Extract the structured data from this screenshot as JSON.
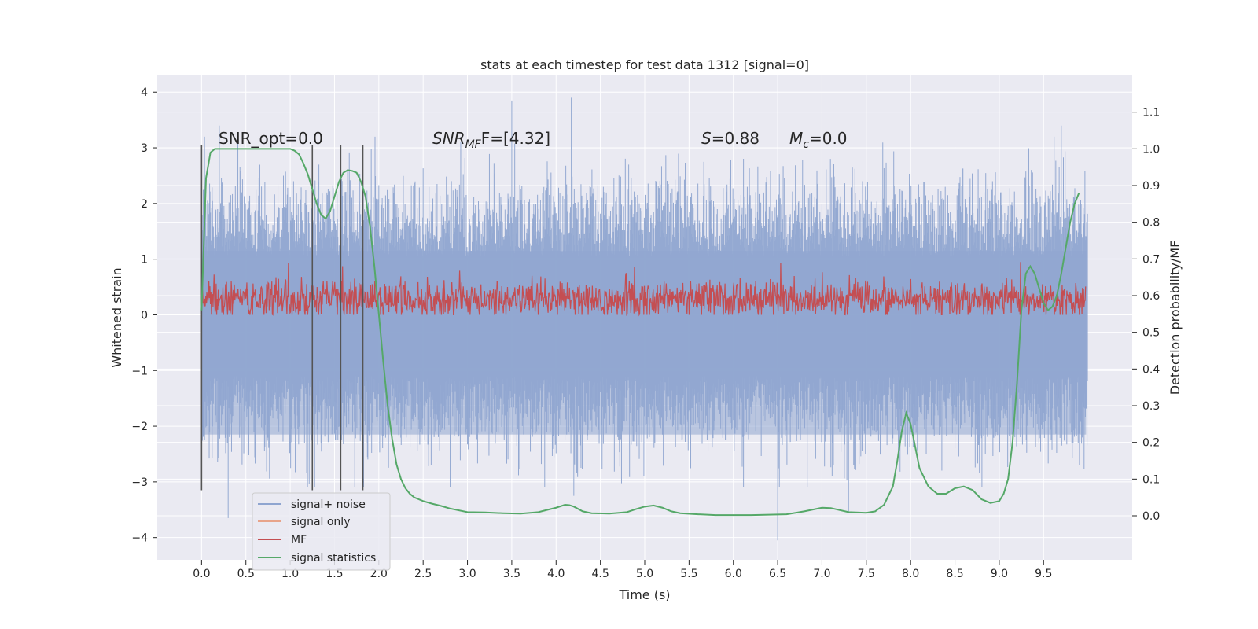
{
  "chart_data": {
    "type": "line",
    "title": "stats at each timestep for test data 1312 [signal=0]",
    "xlabel": "Time (s)",
    "ylabel": "Whitened strain",
    "y2label": "Detection probability/MF",
    "xlim": [
      -0.5,
      10.5
    ],
    "ylim": [
      -4.4,
      4.3
    ],
    "y2lim": [
      -0.12,
      1.2
    ],
    "x_ticks": [
      "0.0",
      "0.5",
      "1.0",
      "1.5",
      "2.0",
      "2.5",
      "3.0",
      "3.5",
      "4.0",
      "4.5",
      "5.0",
      "5.5",
      "6.0",
      "6.5",
      "7.0",
      "7.5",
      "8.0",
      "8.5",
      "9.0",
      "9.5"
    ],
    "y_ticks": [
      "−4",
      "−3",
      "−2",
      "−1",
      "0",
      "1",
      "2",
      "3",
      "4"
    ],
    "y2_ticks": [
      "0.0",
      "0.1",
      "0.2",
      "0.3",
      "0.4",
      "0.5",
      "0.6",
      "0.7",
      "0.8",
      "0.9",
      "1.0",
      "1.1"
    ],
    "grid": true,
    "legend_position": "bottom-left",
    "annotations": {
      "snr_opt": "SNR_opt=0.0",
      "snr_mf_base": "SNR",
      "snr_mf_sub": "MF",
      "snr_mf_rest": "F=[4.32]",
      "s_label": "S",
      "s_value": "=0.88",
      "mc_base": "M",
      "mc_sub": "c",
      "mc_value": "=0.0"
    },
    "vertical_markers_s": [
      0.0,
      1.25,
      1.57,
      1.82
    ],
    "series": [
      {
        "name": "signal+ noise",
        "color": "#8fa5d0",
        "axis": "left",
        "description": "whitened strain noise, amplitude envelope about ±2.5 with peaks near 3.9 and -4.0",
        "peaks": [
          [
            0.2,
            3.4
          ],
          [
            3.5,
            3.85
          ],
          [
            4.17,
            3.9
          ],
          [
            9.7,
            3.4
          ],
          [
            6.5,
            -4.05
          ],
          [
            0.3,
            -3.65
          ],
          [
            4.2,
            -3.25
          ],
          [
            7.3,
            -3.55
          ]
        ]
      },
      {
        "name": "signal only",
        "color": "#e8a48a",
        "axis": "left",
        "values": [
          0,
          0
        ]
      },
      {
        "name": "MF",
        "color": "#c44e52",
        "axis": "left",
        "description": "matched filter output fluctuating between about 0 and 0.6, peaks near 0.95",
        "range": [
          0.0,
          0.95
        ]
      },
      {
        "name": "signal statistics",
        "color": "#55a868",
        "axis": "right",
        "x": [
          0.0,
          0.05,
          0.1,
          0.15,
          0.2,
          0.3,
          0.4,
          0.5,
          0.6,
          0.7,
          0.8,
          0.9,
          1.0,
          1.05,
          1.1,
          1.15,
          1.2,
          1.25,
          1.3,
          1.35,
          1.4,
          1.45,
          1.5,
          1.55,
          1.6,
          1.65,
          1.7,
          1.75,
          1.8,
          1.85,
          1.9,
          1.95,
          2.0,
          2.05,
          2.1,
          2.15,
          2.2,
          2.25,
          2.3,
          2.35,
          2.4,
          2.45,
          2.5,
          2.6,
          2.7,
          2.8,
          3.0,
          3.2,
          3.4,
          3.6,
          3.8,
          3.9,
          4.0,
          4.1,
          4.15,
          4.2,
          4.3,
          4.4,
          4.6,
          4.8,
          4.9,
          5.0,
          5.1,
          5.2,
          5.3,
          5.4,
          5.6,
          5.8,
          6.0,
          6.2,
          6.4,
          6.6,
          6.8,
          7.0,
          7.1,
          7.3,
          7.5,
          7.6,
          7.7,
          7.8,
          7.85,
          7.9,
          7.95,
          8.0,
          8.05,
          8.1,
          8.2,
          8.3,
          8.4,
          8.5,
          8.6,
          8.7,
          8.8,
          8.9,
          9.0,
          9.05,
          9.1,
          9.15,
          9.2,
          9.25,
          9.3,
          9.35,
          9.4,
          9.45,
          9.5,
          9.55,
          9.6,
          9.65,
          9.7,
          9.75,
          9.8,
          9.85,
          9.9
        ],
        "values": [
          0.56,
          0.92,
          0.99,
          1.0,
          1.0,
          1.0,
          1.0,
          1.0,
          1.0,
          1.0,
          1.0,
          1.0,
          1.0,
          0.995,
          0.985,
          0.96,
          0.93,
          0.89,
          0.85,
          0.82,
          0.81,
          0.83,
          0.87,
          0.91,
          0.935,
          0.942,
          0.94,
          0.935,
          0.91,
          0.87,
          0.79,
          0.68,
          0.55,
          0.42,
          0.3,
          0.21,
          0.14,
          0.1,
          0.075,
          0.06,
          0.05,
          0.045,
          0.04,
          0.033,
          0.027,
          0.02,
          0.01,
          0.009,
          0.007,
          0.006,
          0.01,
          0.016,
          0.022,
          0.03,
          0.029,
          0.025,
          0.012,
          0.007,
          0.006,
          0.01,
          0.018,
          0.025,
          0.028,
          0.022,
          0.012,
          0.007,
          0.004,
          0.002,
          0.002,
          0.002,
          0.003,
          0.004,
          0.012,
          0.022,
          0.021,
          0.01,
          0.008,
          0.012,
          0.03,
          0.08,
          0.15,
          0.23,
          0.28,
          0.25,
          0.19,
          0.13,
          0.08,
          0.06,
          0.06,
          0.075,
          0.08,
          0.07,
          0.045,
          0.035,
          0.04,
          0.06,
          0.1,
          0.2,
          0.36,
          0.56,
          0.66,
          0.68,
          0.66,
          0.62,
          0.58,
          0.56,
          0.57,
          0.6,
          0.66,
          0.73,
          0.8,
          0.85,
          0.88
        ]
      }
    ]
  }
}
